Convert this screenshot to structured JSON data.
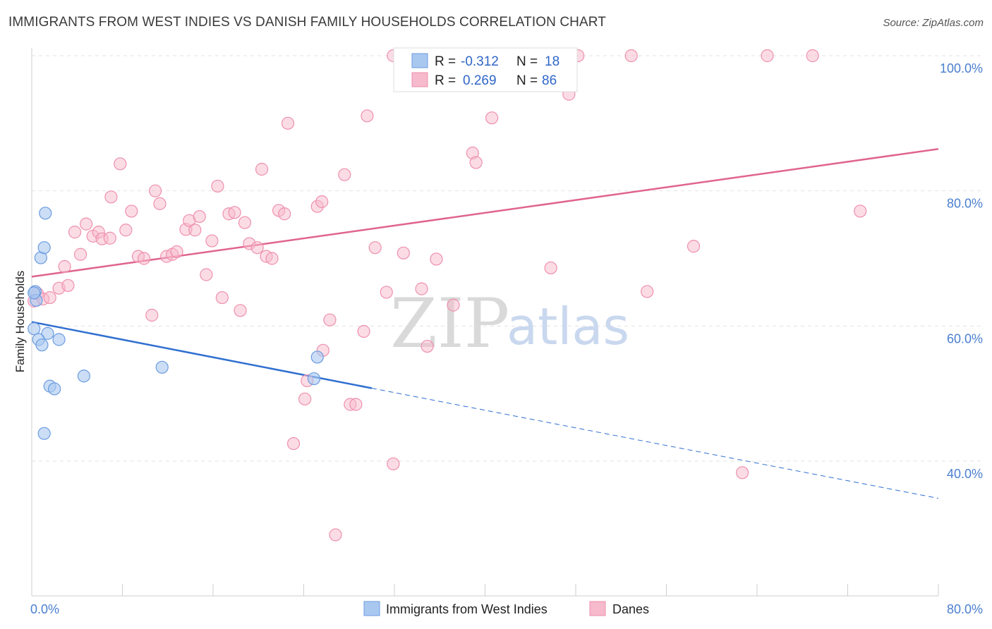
{
  "title": "IMMIGRANTS FROM WEST INDIES VS DANISH FAMILY HOUSEHOLDS CORRELATION CHART",
  "source": "Source: ZipAtlas.com",
  "watermark": {
    "zip": "ZIP",
    "atlas": "atlas"
  },
  "colors": {
    "blue_fill": "#a9c8f0",
    "blue_stroke": "#6a9be0",
    "blue_line": "#2f6fd0",
    "pink_fill": "#f7b9cc",
    "pink_stroke": "#ee8fae",
    "pink_line": "#e0648f",
    "tick_label": "#4a7fcf",
    "grid": "#e3e3e3"
  },
  "legend": {
    "rows": [
      {
        "r_label": "R =",
        "r_value": "-0.312",
        "n_label": "N =",
        "n_value": "18"
      },
      {
        "r_label": "R =",
        "r_value": "0.269",
        "n_label": "N =",
        "n_value": "86"
      }
    ]
  },
  "bottom_legend": [
    "Immigrants from West Indies",
    "Danes"
  ],
  "chart_data": {
    "type": "scatter",
    "title": "IMMIGRANTS FROM WEST INDIES VS DANISH FAMILY HOUSEHOLDS CORRELATION CHART",
    "xlabel": "",
    "ylabel": "Family Households",
    "x_tick_labels": [
      "0.0%",
      "80.0%"
    ],
    "y_tick_labels": [
      "100.0%",
      "80.0%",
      "60.0%",
      "40.0%"
    ],
    "y_tick_values": [
      100,
      80,
      60,
      40
    ],
    "xlim": [
      0,
      80
    ],
    "ylim": [
      21,
      102
    ],
    "grid": true,
    "series": [
      {
        "name": "Immigrants from West Indies",
        "points": [
          [
            0.3,
            65.1
          ],
          [
            0.4,
            63.8
          ],
          [
            1.2,
            76.7
          ],
          [
            0.8,
            70.1
          ],
          [
            1.1,
            71.6
          ],
          [
            0.2,
            59.6
          ],
          [
            1.4,
            58.9
          ],
          [
            0.6,
            58.0
          ],
          [
            0.9,
            57.2
          ],
          [
            2.4,
            58.0
          ],
          [
            1.6,
            51.1
          ],
          [
            2.0,
            50.7
          ],
          [
            4.6,
            52.6
          ],
          [
            11.5,
            53.9
          ],
          [
            25.2,
            55.4
          ],
          [
            24.9,
            52.2
          ],
          [
            1.1,
            44.1
          ],
          [
            0.2,
            64.9
          ]
        ],
        "trend": {
          "x": [
            0,
            30
          ],
          "y": [
            60.6,
            50.8
          ],
          "dashed_to": [
            80,
            34.5
          ]
        }
      },
      {
        "name": "Danes",
        "points": [
          [
            0.2,
            63.7
          ],
          [
            0.5,
            64.8
          ],
          [
            1.0,
            64.0
          ],
          [
            1.6,
            64.2
          ],
          [
            2.4,
            65.6
          ],
          [
            3.2,
            66.0
          ],
          [
            2.9,
            68.8
          ],
          [
            3.8,
            73.9
          ],
          [
            4.3,
            70.6
          ],
          [
            4.8,
            75.1
          ],
          [
            5.4,
            73.3
          ],
          [
            5.9,
            73.9
          ],
          [
            6.2,
            72.9
          ],
          [
            6.9,
            73.0
          ],
          [
            7.0,
            79.1
          ],
          [
            7.8,
            84.0
          ],
          [
            8.3,
            74.2
          ],
          [
            8.8,
            77.0
          ],
          [
            9.4,
            70.3
          ],
          [
            9.9,
            70.0
          ],
          [
            10.6,
            61.6
          ],
          [
            10.9,
            80.0
          ],
          [
            11.3,
            78.1
          ],
          [
            11.9,
            70.3
          ],
          [
            12.4,
            70.6
          ],
          [
            12.8,
            71.0
          ],
          [
            13.6,
            74.3
          ],
          [
            13.9,
            75.6
          ],
          [
            14.4,
            74.2
          ],
          [
            14.8,
            76.2
          ],
          [
            15.4,
            67.6
          ],
          [
            15.9,
            72.6
          ],
          [
            16.4,
            80.7
          ],
          [
            16.8,
            64.2
          ],
          [
            17.4,
            76.6
          ],
          [
            17.9,
            76.8
          ],
          [
            18.4,
            62.3
          ],
          [
            18.8,
            75.3
          ],
          [
            19.2,
            72.2
          ],
          [
            19.9,
            71.6
          ],
          [
            20.3,
            83.2
          ],
          [
            20.7,
            70.3
          ],
          [
            21.2,
            70.0
          ],
          [
            21.8,
            77.1
          ],
          [
            22.3,
            76.6
          ],
          [
            22.6,
            90.0
          ],
          [
            23.1,
            42.6
          ],
          [
            24.1,
            49.2
          ],
          [
            24.3,
            51.9
          ],
          [
            25.2,
            77.7
          ],
          [
            25.6,
            78.4
          ],
          [
            25.7,
            56.4
          ],
          [
            26.3,
            60.9
          ],
          [
            26.8,
            29.1
          ],
          [
            27.6,
            82.4
          ],
          [
            28.1,
            48.4
          ],
          [
            28.6,
            48.4
          ],
          [
            29.3,
            59.2
          ],
          [
            29.6,
            91.1
          ],
          [
            30.3,
            71.6
          ],
          [
            31.3,
            65.0
          ],
          [
            31.9,
            39.6
          ],
          [
            31.9,
            100.0
          ],
          [
            32.8,
            70.8
          ],
          [
            34.1,
            100.0
          ],
          [
            34.4,
            65.5
          ],
          [
            34.9,
            57.0
          ],
          [
            35.7,
            69.9
          ],
          [
            36.6,
            95.8
          ],
          [
            37.2,
            63.1
          ],
          [
            38.2,
            100.0
          ],
          [
            38.9,
            85.6
          ],
          [
            39.2,
            84.2
          ],
          [
            40.6,
            90.8
          ],
          [
            44.6,
            100.0
          ],
          [
            45.8,
            68.6
          ],
          [
            47.4,
            94.3
          ],
          [
            48.2,
            100.0
          ],
          [
            52.9,
            100.0
          ],
          [
            54.3,
            65.1
          ],
          [
            58.4,
            71.8
          ],
          [
            62.7,
            38.3
          ],
          [
            64.9,
            100.0
          ],
          [
            68.9,
            100.0
          ],
          [
            73.1,
            77.0
          ],
          [
            40.0,
            100.0
          ]
        ],
        "trend": {
          "x": [
            0,
            80
          ],
          "y": [
            67.3,
            86.2
          ]
        }
      }
    ]
  }
}
